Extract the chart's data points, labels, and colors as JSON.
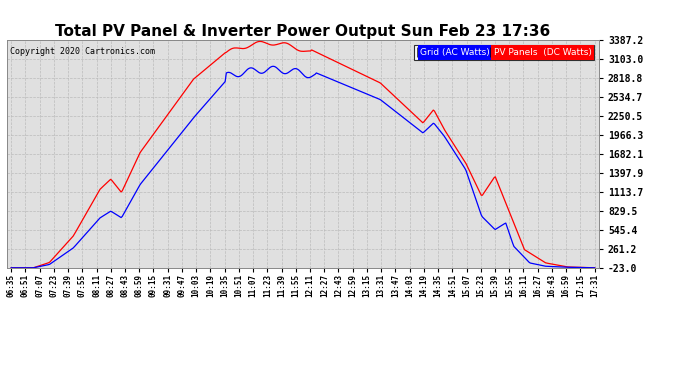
{
  "title": "Total PV Panel & Inverter Power Output Sun Feb 23 17:36",
  "copyright": "Copyright 2020 Cartronics.com",
  "legend_grid": "Grid (AC Watts)",
  "legend_pv": "PV Panels  (DC Watts)",
  "yticks": [
    3387.2,
    3103.0,
    2818.8,
    2534.7,
    2250.5,
    1966.3,
    1682.1,
    1397.9,
    1113.7,
    829.5,
    545.4,
    261.2,
    -23.0
  ],
  "ymin": -23.0,
  "ymax": 3387.2,
  "grid_color": "#bbbbbb",
  "bg_color": "#ffffff",
  "plot_bg_color": "#e0e0e0",
  "line_grid_color": "blue",
  "line_pv_color": "red",
  "title_fontsize": 11,
  "xtick_labels": [
    "06:35",
    "06:51",
    "07:07",
    "07:23",
    "07:39",
    "07:55",
    "08:11",
    "08:27",
    "08:43",
    "08:59",
    "09:15",
    "09:31",
    "09:47",
    "10:03",
    "10:19",
    "10:35",
    "10:51",
    "11:07",
    "11:23",
    "11:39",
    "11:55",
    "12:11",
    "12:27",
    "12:43",
    "12:59",
    "13:15",
    "13:31",
    "13:47",
    "14:03",
    "14:19",
    "14:35",
    "14:51",
    "15:07",
    "15:23",
    "15:39",
    "15:55",
    "16:11",
    "16:27",
    "16:43",
    "16:59",
    "17:15",
    "17:31"
  ]
}
